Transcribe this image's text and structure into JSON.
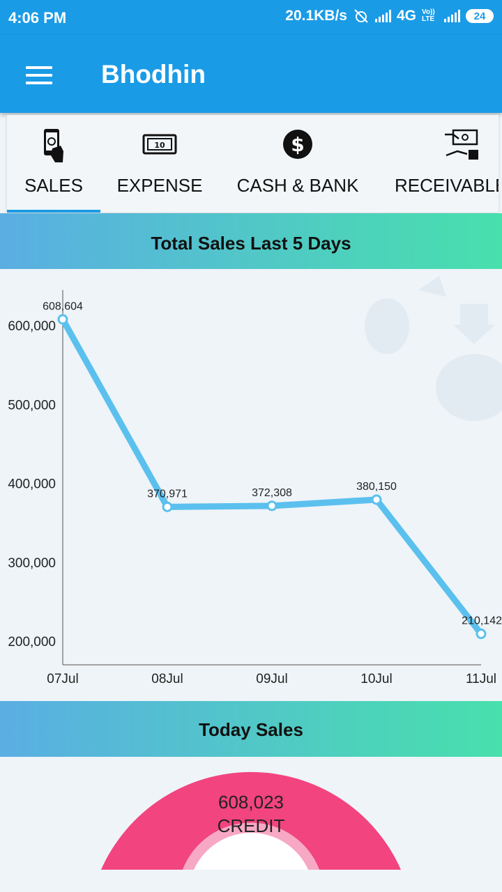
{
  "status_bar": {
    "time": "4:06 PM",
    "speed": "20.1KB/s",
    "network": "4G",
    "volte": "Vo)) LTE",
    "battery": "24"
  },
  "app_bar": {
    "title": "Bhodhin"
  },
  "tabs": [
    {
      "label": "SALES",
      "icon": "hand-phone-money-icon",
      "selected": true
    },
    {
      "label": "EXPENSE",
      "icon": "banknote-icon",
      "selected": false
    },
    {
      "label": "CASH & BANK",
      "icon": "dollar-circle-icon",
      "selected": false
    },
    {
      "label": "RECEIVABLE",
      "icon": "hand-receive-cash-icon",
      "selected": false
    }
  ],
  "sales_chart_section": {
    "title": "Total Sales Last 5 Days"
  },
  "chart_data": {
    "type": "line",
    "categories": [
      "07Jul",
      "08Jul",
      "09Jul",
      "10Jul",
      "11Jul"
    ],
    "values": [
      608604,
      370971,
      372308,
      380150,
      210142
    ],
    "value_labels": [
      "608,604",
      "370,971",
      "372,308",
      "380,150",
      "210,142"
    ],
    "y_ticks": [
      600000,
      500000,
      400000,
      300000,
      200000
    ],
    "y_tick_labels": [
      "600,000",
      "500,000",
      "400,000",
      "300,000",
      "200,000"
    ],
    "ylim": [
      170000,
      650000
    ],
    "line_color": "#5bc0ee",
    "grid": false
  },
  "today_section": {
    "title": "Today Sales",
    "value": "608,023",
    "label": "CREDIT",
    "color": "#f2447e"
  }
}
